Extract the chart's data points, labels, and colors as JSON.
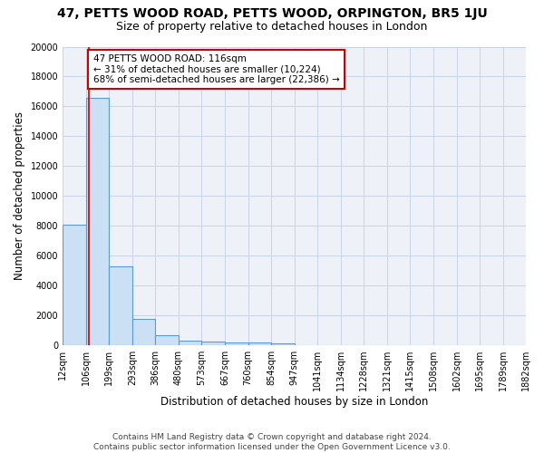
{
  "title": "47, PETTS WOOD ROAD, PETTS WOOD, ORPINGTON, BR5 1JU",
  "subtitle": "Size of property relative to detached houses in London",
  "xlabel": "Distribution of detached houses by size in London",
  "ylabel": "Number of detached properties",
  "bin_edges": [
    12,
    106,
    199,
    293,
    386,
    480,
    573,
    667,
    760,
    854,
    947,
    1041,
    1134,
    1228,
    1321,
    1415,
    1508,
    1602,
    1695,
    1789,
    1882
  ],
  "bin_counts": [
    8100,
    16600,
    5300,
    1750,
    700,
    330,
    230,
    200,
    170,
    150,
    0,
    0,
    0,
    0,
    0,
    0,
    0,
    0,
    0,
    0
  ],
  "bar_color": "#cce0f5",
  "bar_edge_color": "#5b9bd5",
  "grid_color": "#c8d4e8",
  "background_color": "#eef2f8",
  "vline_x": 116,
  "vline_color": "#cc0000",
  "annotation_line1": "47 PETTS WOOD ROAD: 116sqm",
  "annotation_line2": "← 31% of detached houses are smaller (10,224)",
  "annotation_line3": "68% of semi-detached houses are larger (22,386) →",
  "annotation_box_color": "#ffffff",
  "annotation_border_color": "#cc0000",
  "ylim": [
    0,
    20000
  ],
  "yticks": [
    0,
    2000,
    4000,
    6000,
    8000,
    10000,
    12000,
    14000,
    16000,
    18000,
    20000
  ],
  "tick_labels": [
    "12sqm",
    "106sqm",
    "199sqm",
    "293sqm",
    "386sqm",
    "480sqm",
    "573sqm",
    "667sqm",
    "760sqm",
    "854sqm",
    "947sqm",
    "1041sqm",
    "1134sqm",
    "1228sqm",
    "1321sqm",
    "1415sqm",
    "1508sqm",
    "1602sqm",
    "1695sqm",
    "1789sqm",
    "1882sqm"
  ],
  "footer": "Contains HM Land Registry data © Crown copyright and database right 2024.\nContains public sector information licensed under the Open Government Licence v3.0.",
  "title_fontsize": 10,
  "subtitle_fontsize": 9,
  "tick_fontsize": 7,
  "ylabel_fontsize": 8.5,
  "xlabel_fontsize": 8.5,
  "annotation_fontsize": 7.5,
  "footer_fontsize": 6.5
}
